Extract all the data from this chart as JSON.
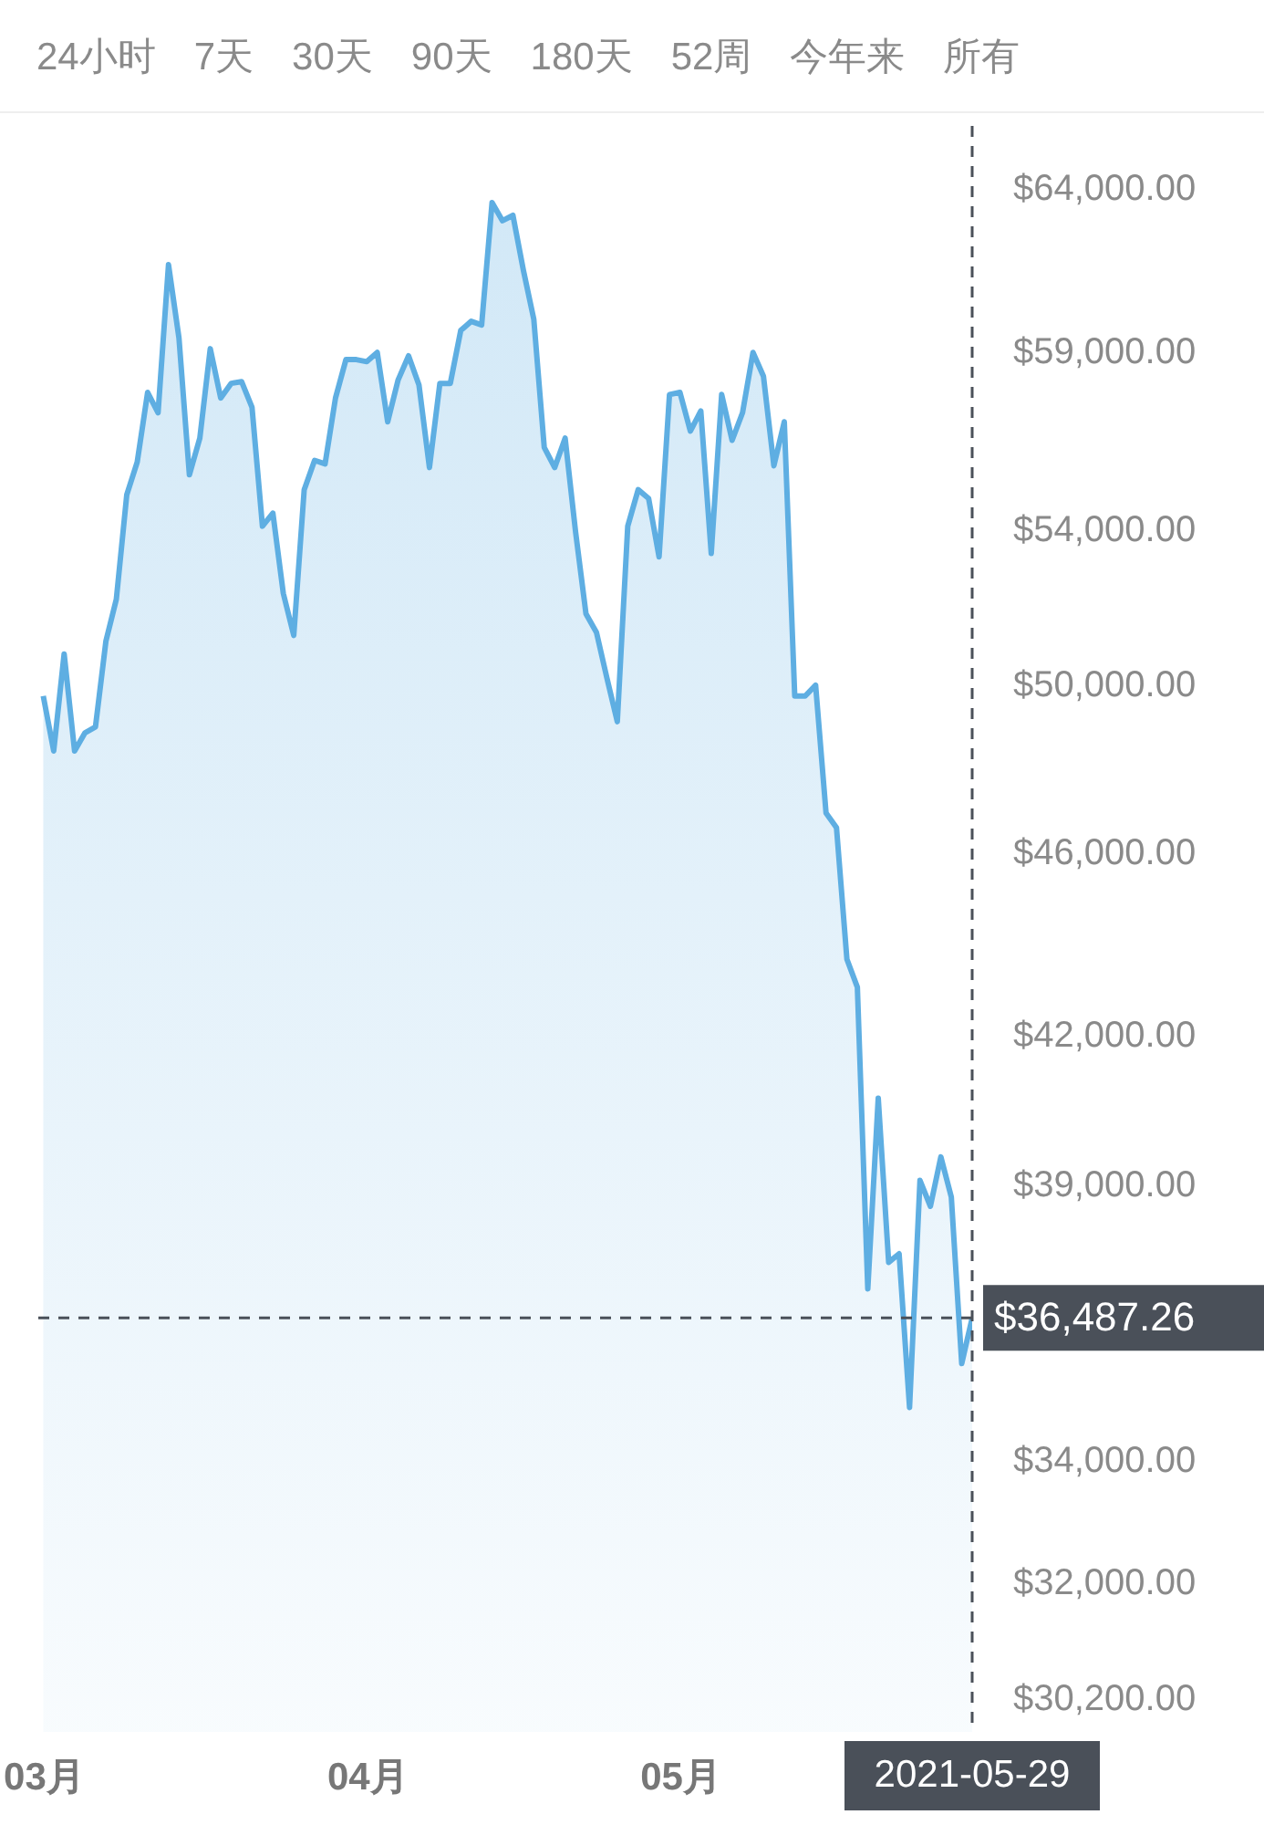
{
  "chart_data": {
    "type": "area",
    "log": true,
    "grid": false,
    "tick_labels": "xy",
    "annotations": [
      "24小时",
      "7天",
      "30天",
      "90天",
      "180天",
      "52周",
      "今年来",
      "所有"
    ],
    "x": [
      "2021-03-01",
      "2021-03-02",
      "2021-03-03",
      "2021-03-04",
      "2021-03-05",
      "2021-03-06",
      "2021-03-07",
      "2021-03-08",
      "2021-03-09",
      "2021-03-10",
      "2021-03-11",
      "2021-03-12",
      "2021-03-13",
      "2021-03-14",
      "2021-03-15",
      "2021-03-16",
      "2021-03-17",
      "2021-03-18",
      "2021-03-19",
      "2021-03-20",
      "2021-03-21",
      "2021-03-22",
      "2021-03-23",
      "2021-03-24",
      "2021-03-25",
      "2021-03-26",
      "2021-03-27",
      "2021-03-28",
      "2021-03-29",
      "2021-03-30",
      "2021-03-31",
      "2021-04-01",
      "2021-04-02",
      "2021-04-03",
      "2021-04-04",
      "2021-04-05",
      "2021-04-06",
      "2021-04-07",
      "2021-04-08",
      "2021-04-09",
      "2021-04-10",
      "2021-04-11",
      "2021-04-12",
      "2021-04-13",
      "2021-04-14",
      "2021-04-15",
      "2021-04-16",
      "2021-04-17",
      "2021-04-18",
      "2021-04-19",
      "2021-04-20",
      "2021-04-21",
      "2021-04-22",
      "2021-04-23",
      "2021-04-24",
      "2021-04-25",
      "2021-04-26",
      "2021-04-27",
      "2021-04-28",
      "2021-04-29",
      "2021-04-30",
      "2021-05-01",
      "2021-05-02",
      "2021-05-03",
      "2021-05-04",
      "2021-05-05",
      "2021-05-06",
      "2021-05-07",
      "2021-05-08",
      "2021-05-09",
      "2021-05-10",
      "2021-05-11",
      "2021-05-12",
      "2021-05-13",
      "2021-05-14",
      "2021-05-15",
      "2021-05-16",
      "2021-05-17",
      "2021-05-18",
      "2021-05-19",
      "2021-05-20",
      "2021-05-21",
      "2021-05-22",
      "2021-05-23",
      "2021-05-24",
      "2021-05-25",
      "2021-05-26",
      "2021-05-27",
      "2021-05-28",
      "2021-05-29"
    ],
    "series": [
      {
        "color": "#5eaee2",
        "values": [
          49710,
          48370,
          50760,
          48370,
          48810,
          48950,
          51080,
          52160,
          54940,
          55840,
          57810,
          57230,
          61600,
          59400,
          55490,
          56510,
          59080,
          57650,
          58070,
          58120,
          57380,
          54090,
          54440,
          52310,
          51230,
          55080,
          55890,
          55790,
          57650,
          58760,
          58760,
          58700,
          58970,
          56970,
          58170,
          58870,
          58020,
          55690,
          58070,
          58070,
          59620,
          59890,
          59780,
          63530,
          62960,
          63130,
          61430,
          59950,
          56250,
          55690,
          56510,
          53940,
          51780,
          51310,
          50160,
          49080,
          54090,
          55080,
          54840,
          53270,
          57750,
          57810,
          56710,
          57280,
          53360,
          57750,
          56450,
          57230,
          58970,
          58280,
          55740,
          56970,
          49710,
          49710,
          49980,
          46900,
          46560,
          43610,
          43010,
          37020,
          40700,
          37510,
          37670,
          34900,
          39070,
          38570,
          39530,
          38750,
          35670,
          36487.26
        ]
      }
    ],
    "xlim": [
      "2021-02-28",
      "2021-05-29"
    ],
    "xticks": [
      {
        "value": "2021-03-01",
        "label": "03月"
      },
      {
        "value": "2021-04-01",
        "label": "04月"
      },
      {
        "value": "2021-05-01",
        "label": "05月"
      }
    ],
    "ylim": [
      29700,
      66000
    ],
    "yticks": [
      {
        "value": 64000,
        "label": "$64,000.00"
      },
      {
        "value": 59000,
        "label": "$59,000.00"
      },
      {
        "value": 54000,
        "label": "$54,000.00"
      },
      {
        "value": 50000,
        "label": "$50,000.00"
      },
      {
        "value": 46000,
        "label": "$46,000.00"
      },
      {
        "value": 42000,
        "label": "$42,000.00"
      },
      {
        "value": 39000,
        "label": "$39,000.00"
      },
      {
        "value": 34000,
        "label": "$34,000.00"
      },
      {
        "value": 32000,
        "label": "$32,000.00"
      },
      {
        "value": 30200,
        "label": "$30,200.00"
      }
    ],
    "ref_lines": [
      {
        "axis": "y",
        "value": 36487.26,
        "label": "$36,487.26",
        "color": "#4a5059",
        "line_style": "dashed"
      },
      {
        "axis": "x",
        "value": "2021-05-29",
        "label": "2021-05-29",
        "color": "#4a5059",
        "line_style": "dashed"
      }
    ]
  }
}
